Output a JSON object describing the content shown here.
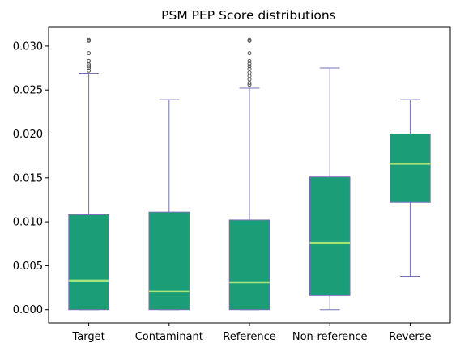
{
  "chart_data": {
    "type": "box",
    "title": "PSM PEP Score distributions",
    "xlabel": "",
    "ylabel": "",
    "categories": [
      "Target",
      "Contaminant",
      "Reference",
      "Non-reference",
      "Reverse"
    ],
    "ylim": [
      -0.0015,
      0.0322
    ],
    "yticks": [
      0.0,
      0.005,
      0.01,
      0.015,
      0.02,
      0.025,
      0.03
    ],
    "ytick_labels": [
      "0.000",
      "0.005",
      "0.010",
      "0.015",
      "0.020",
      "0.025",
      "0.030"
    ],
    "grid": false,
    "colors": {
      "box_fill": "#1b9e77",
      "box_edge": "#7570b3",
      "median": "#a6e27a",
      "whisker": "#7570b3",
      "flier": "#555555"
    },
    "boxes": [
      {
        "category": "Target",
        "min": 0.0,
        "q1": 0.0,
        "median": 0.0033,
        "q3": 0.0108,
        "max": 0.0269,
        "outliers": [
          0.0272,
          0.0275,
          0.0277,
          0.0279,
          0.0283,
          0.0292,
          0.0306,
          0.0307
        ]
      },
      {
        "category": "Contaminant",
        "min": 0.0,
        "q1": 0.0,
        "median": 0.0021,
        "q3": 0.0111,
        "max": 0.0239,
        "outliers": []
      },
      {
        "category": "Reference",
        "min": 0.0,
        "q1": 0.0,
        "median": 0.0031,
        "q3": 0.0102,
        "max": 0.0252,
        "outliers": [
          0.0256,
          0.0258,
          0.0262,
          0.0266,
          0.027,
          0.0274,
          0.0277,
          0.028,
          0.0283,
          0.0292,
          0.0306,
          0.0307
        ]
      },
      {
        "category": "Non-reference",
        "min": 0.0,
        "q1": 0.0016,
        "median": 0.0076,
        "q3": 0.0151,
        "max": 0.0275,
        "outliers": []
      },
      {
        "category": "Reverse",
        "min": 0.0038,
        "q1": 0.0122,
        "median": 0.0166,
        "q3": 0.02,
        "max": 0.0239,
        "outliers": []
      }
    ]
  }
}
